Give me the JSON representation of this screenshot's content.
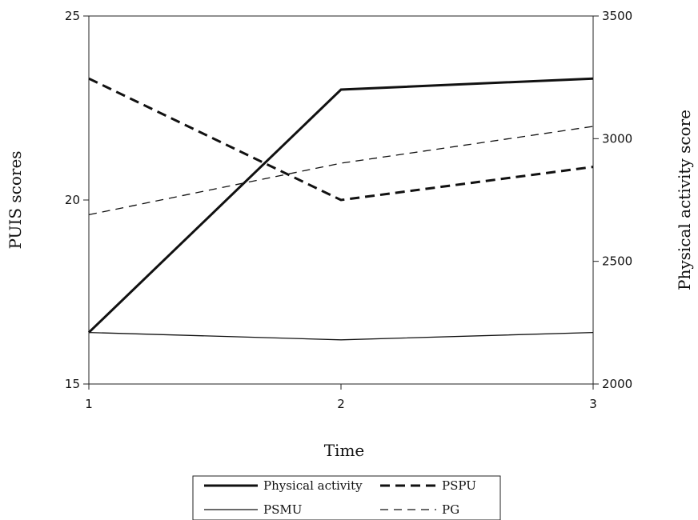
{
  "chart_data": {
    "type": "line",
    "xlabel": "Time",
    "ylabel_left": "PUIS scores",
    "ylabel_right": "Physical activity score",
    "x": [
      1,
      2,
      3
    ],
    "x_ticks": [
      "1",
      "2",
      "3"
    ],
    "ylim_left": [
      15,
      25
    ],
    "ylim_right": [
      2000,
      3500
    ],
    "y_ticks_left": [
      "15",
      "20",
      "25"
    ],
    "y_ticks_right": [
      "2000",
      "2500",
      "3000",
      "3500"
    ],
    "grid": false,
    "legend_position": "bottom",
    "series": [
      {
        "name": "Physical activity",
        "axis": "right",
        "style": "solid-thick",
        "values": [
          2210,
          3200,
          3245
        ]
      },
      {
        "name": "PSPU",
        "axis": "left",
        "style": "dashed-thick",
        "values": [
          23.3,
          20.0,
          20.9
        ]
      },
      {
        "name": "PSMU",
        "axis": "left",
        "style": "solid-thin",
        "values": [
          16.4,
          16.2,
          16.4
        ]
      },
      {
        "name": "PG",
        "axis": "left",
        "style": "dashed-thin",
        "values": [
          19.6,
          21.0,
          22.0
        ]
      }
    ]
  }
}
